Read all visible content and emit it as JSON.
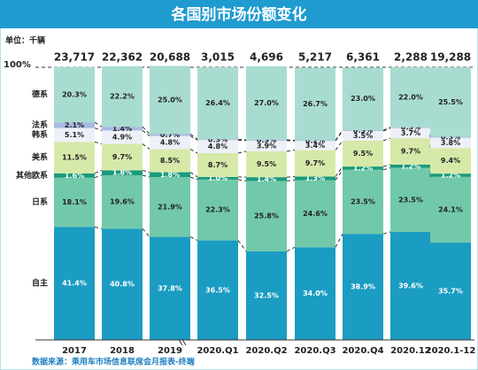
{
  "chart_data": {
    "type": "bar",
    "stacked": true,
    "title": "各国别市场份额变化",
    "unit_label": "单位：千辆",
    "source": "数据来源：乘用车市场信息联席会月报表-终端",
    "categories": [
      "2017",
      "2018",
      "2019",
      "2020.Q1",
      "2020.Q2",
      "2020.Q3",
      "2020.Q4",
      "2020.12",
      "2020.1-12"
    ],
    "totals": {
      "values": [
        23717,
        22362,
        20688,
        3015,
        4696,
        5217,
        6361,
        2288,
        19288
      ],
      "value_labels": [
        "23,717",
        "22,362",
        "20,688",
        "3,015",
        "4,696",
        "5,217",
        "6,361",
        "2,288",
        "19,288"
      ]
    },
    "ylim": [
      0,
      100
    ],
    "yticks": [
      {
        "value": 100,
        "label": "100%"
      }
    ],
    "series": [
      {
        "name": "自主",
        "color": "#1b9cc2",
        "values": [
          41.4,
          40.8,
          37.8,
          36.5,
          32.5,
          34.0,
          38.9,
          39.6,
          35.7
        ],
        "value_labels": [
          "41.4%",
          "40.8%",
          "37.8%",
          "36.5%",
          "32.5%",
          "34.0%",
          "38.9%",
          "39.6%",
          "35.7%"
        ]
      },
      {
        "name": "日系",
        "color": "#72c9aa",
        "values": [
          18.1,
          19.6,
          21.9,
          22.3,
          25.8,
          24.6,
          23.5,
          23.5,
          24.1
        ],
        "value_labels": [
          "18.1%",
          "19.6%",
          "21.9%",
          "22.3%",
          "25.8%",
          "24.6%",
          "23.5%",
          "23.5%",
          "24.1%"
        ]
      },
      {
        "name": "其他欧系",
        "color": "#1a9a7c",
        "values": [
          1.6,
          1.8,
          1.8,
          1.0,
          1.4,
          1.3,
          1.2,
          1.2,
          1.2
        ],
        "value_labels": [
          "1.6%",
          "1.8%",
          "1.8%",
          "1.0%",
          "1.4%",
          "1.3%",
          "1.2%",
          "1.2%",
          "1.2%"
        ]
      },
      {
        "name": "美系",
        "color": "#d6e9a9",
        "values": [
          11.5,
          9.7,
          8.5,
          8.7,
          9.5,
          9.7,
          9.5,
          9.7,
          9.4
        ],
        "value_labels": [
          "11.5%",
          "9.7%",
          "8.5%",
          "8.7%",
          "9.5%",
          "9.7%",
          "9.5%",
          "9.7%",
          "9.4%"
        ]
      },
      {
        "name": "韩系",
        "color": "#eef0f8",
        "values": [
          5.1,
          4.9,
          4.8,
          4.8,
          3.9,
          3.4,
          3.5,
          3.7,
          3.8
        ],
        "value_labels": [
          "5.1%",
          "4.9%",
          "4.8%",
          "4.8%",
          "3.9%",
          "3.4%",
          "3.5%",
          "3.7%",
          "3.8%"
        ]
      },
      {
        "name": "法系",
        "color": "#a9b9e2",
        "values": [
          2.1,
          1.4,
          0.7,
          0.3,
          0.3,
          0.2,
          0.3,
          0.3,
          0.3
        ],
        "value_labels": [
          "2.1%",
          "1.4%",
          "0.7%",
          "0.3%",
          "0.3%",
          "0.2%",
          "0.3%",
          "0.3%",
          "0.3%"
        ]
      },
      {
        "name": "德系",
        "color": "#a9dcd1",
        "values": [
          20.3,
          22.2,
          25.0,
          26.4,
          27.0,
          26.7,
          23.0,
          22.0,
          25.5
        ],
        "value_labels": [
          "20.3%",
          "22.2%",
          "25.0%",
          "26.4%",
          "27.0%",
          "26.7%",
          "23.0%",
          "22.0%",
          "25.5%"
        ]
      }
    ]
  }
}
